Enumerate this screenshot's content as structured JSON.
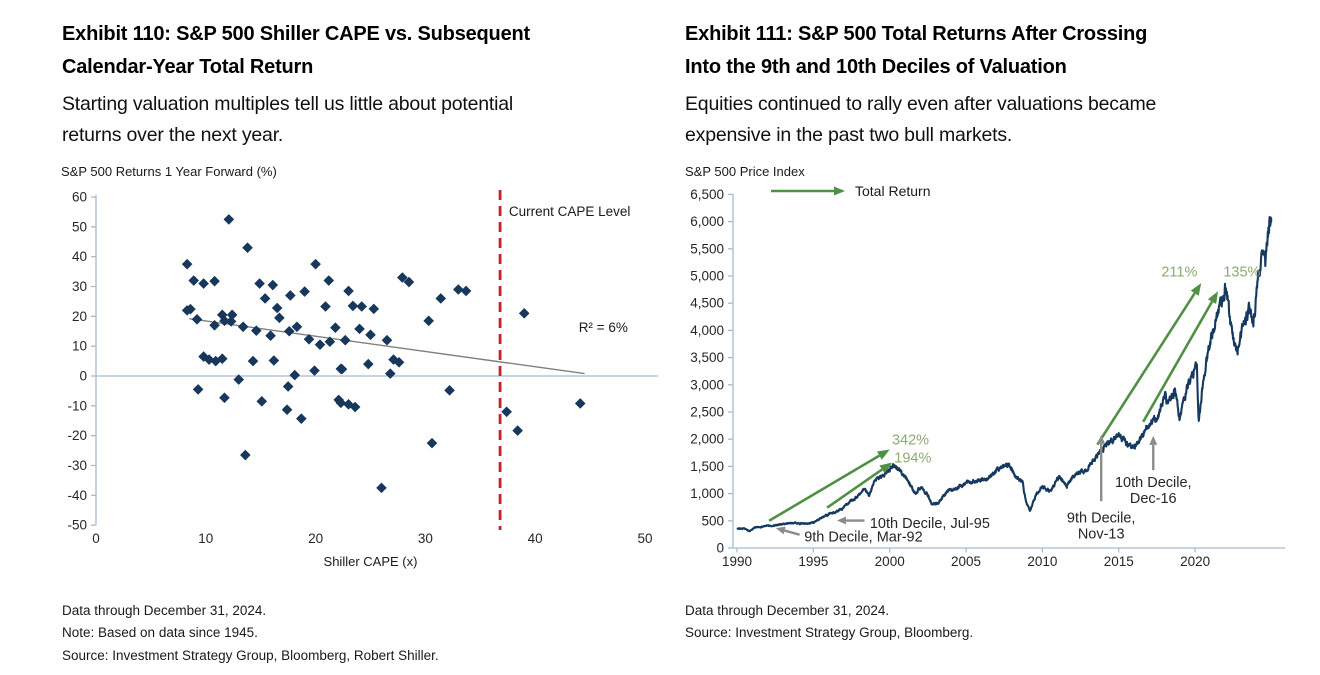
{
  "colors": {
    "navy": "#17375C",
    "line_navy": "#16395F",
    "green_arrow": "#4F9143",
    "green_label": "#8CAA72",
    "red_dashed": "#C8232C",
    "axis_line": "#A7BBCF",
    "trend_gray": "#808080",
    "gray_arrow": "#8C8C8C",
    "text_dark": "#1A1A1A",
    "annotation_text": "#262626"
  },
  "left": {
    "title_lines": [
      "Exhibit 110: S&P 500 Shiller CAPE vs. Subsequent",
      "Calendar-Year Total Return"
    ],
    "subtitle_lines": [
      "Starting valuation multiples tell us little about potential",
      "returns over the next year."
    ],
    "footnotes": [
      "Data through December 31, 2024.",
      "Note: Based on data since 1945.",
      "Source: Investment Strategy Group, Bloomberg, Robert Shiller."
    ]
  },
  "right": {
    "title_lines": [
      "Exhibit 111: S&P 500 Total Returns After Crossing",
      "Into the 9th and 10th Deciles of Valuation"
    ],
    "subtitle_lines": [
      "Equities continued to rally even after valuations became",
      "expensive in the past two bull markets."
    ],
    "footnotes": [
      "Data through December 31, 2024.",
      "Source: Investment Strategy Group, Bloomberg."
    ]
  },
  "chart_data": [
    {
      "type": "scatter",
      "title": "S&P 500 Shiller CAPE vs. Subsequent Calendar-Year Total Return",
      "ylabel": "S&P 500 Returns 1 Year Forward (%)",
      "xlabel": "Shiller CAPE (x)",
      "xlim": [
        0,
        50
      ],
      "ylim": [
        -50,
        60
      ],
      "x_ticks": [
        0,
        10,
        20,
        30,
        40,
        50
      ],
      "y_ticks": [
        60,
        50,
        40,
        30,
        20,
        10,
        0,
        -10,
        -20,
        -30,
        -40,
        -50
      ],
      "grid": false,
      "points": [
        [
          8.3,
          37.5
        ],
        [
          8.3,
          22
        ],
        [
          8.6,
          22.4
        ],
        [
          8.9,
          32
        ],
        [
          9.2,
          19
        ],
        [
          9.3,
          -4.5
        ],
        [
          9.8,
          31
        ],
        [
          9.8,
          6.5
        ],
        [
          10.3,
          5.5
        ],
        [
          10.8,
          31.8
        ],
        [
          10.8,
          17
        ],
        [
          10.9,
          5
        ],
        [
          11.5,
          20.5
        ],
        [
          11.5,
          5.8
        ],
        [
          11.7,
          18.5
        ],
        [
          11.7,
          -7.3
        ],
        [
          12.1,
          52.5
        ],
        [
          12.3,
          18.3
        ],
        [
          12.4,
          20.5
        ],
        [
          13,
          -1.2
        ],
        [
          13.4,
          16.5
        ],
        [
          13.6,
          -26.5
        ],
        [
          13.8,
          43
        ],
        [
          14.3,
          5
        ],
        [
          14.6,
          15.2
        ],
        [
          14.9,
          31
        ],
        [
          15.1,
          -8.5
        ],
        [
          15.4,
          26
        ],
        [
          15.9,
          13.5
        ],
        [
          16.1,
          30.5
        ],
        [
          16.2,
          5.2
        ],
        [
          16.5,
          22.8
        ],
        [
          16.7,
          19.5
        ],
        [
          17.4,
          -11.3
        ],
        [
          17.5,
          -3.5
        ],
        [
          17.6,
          15
        ],
        [
          17.7,
          27
        ],
        [
          18.1,
          0.3
        ],
        [
          18.3,
          16.5
        ],
        [
          18.7,
          -14.3
        ],
        [
          19,
          28.3
        ],
        [
          19.4,
          12.3
        ],
        [
          19.9,
          1.8
        ],
        [
          20,
          37.5
        ],
        [
          20.4,
          10.5
        ],
        [
          20.9,
          23.3
        ],
        [
          21.2,
          32
        ],
        [
          21.3,
          11.5
        ],
        [
          21.8,
          16.2
        ],
        [
          22.1,
          -8
        ],
        [
          22.3,
          2.4
        ],
        [
          22.3,
          -9
        ],
        [
          22.4,
          2.3
        ],
        [
          22.7,
          12
        ],
        [
          23,
          28.5
        ],
        [
          23,
          -9.5
        ],
        [
          23.4,
          23.5
        ],
        [
          23.6,
          -10.4
        ],
        [
          24,
          15.8
        ],
        [
          24.2,
          23.3
        ],
        [
          24.8,
          4
        ],
        [
          25,
          13.8
        ],
        [
          25.3,
          22.5
        ],
        [
          26,
          -37.5
        ],
        [
          26.5,
          12
        ],
        [
          26.8,
          0.8
        ],
        [
          27.1,
          5.5
        ],
        [
          27.6,
          4.6
        ],
        [
          27.9,
          33
        ],
        [
          28.5,
          31.5
        ],
        [
          30.3,
          18.5
        ],
        [
          30.6,
          -22.5
        ],
        [
          31.4,
          26
        ],
        [
          32.2,
          -4.8
        ],
        [
          33,
          29
        ],
        [
          33.7,
          28.5
        ],
        [
          37.4,
          -12
        ],
        [
          38.4,
          -18.3
        ],
        [
          39,
          21
        ],
        [
          44.1,
          -9.2
        ]
      ],
      "trend_line": {
        "x1": 8.5,
        "y1": 19.2,
        "x2": 44.5,
        "y2": 0.8
      },
      "r_squared": {
        "label": "R² = 6%",
        "at": [
          46.2,
          16.5
        ]
      },
      "vline": {
        "x": 36.8,
        "label": "Current CAPE Level",
        "label_at": [
          37.6,
          55
        ]
      }
    },
    {
      "type": "line",
      "title": "S&P 500 Total Returns After Crossing Into the 9th and 10th Deciles of Valuation",
      "ylabel": "S&P 500 Price Index",
      "xlabel": "",
      "xlim": [
        1989.6,
        2026
      ],
      "ylim": [
        0,
        6500
      ],
      "x_ticks": [
        1990,
        1995,
        2000,
        2005,
        2010,
        2015,
        2020
      ],
      "y_ticks": [
        0,
        500,
        1000,
        1500,
        2000,
        2500,
        3000,
        3500,
        4000,
        4500,
        5000,
        5500,
        6000,
        6500
      ],
      "y_tick_labels": [
        "0",
        "500",
        "1,000",
        "1,500",
        "2,000",
        "2,500",
        "3,000",
        "3,500",
        "4,000",
        "4,500",
        "5,000",
        "5,500",
        "6,000",
        "6,500"
      ],
      "grid": false,
      "legend": {
        "label": "Total Return",
        "position": "top-left"
      },
      "series": [
        {
          "name": "S&P 500 Price Index",
          "anchors": [
            [
              1990,
              353
            ],
            [
              1990.5,
              360
            ],
            [
              1990.8,
              306
            ],
            [
              1991.2,
              380
            ],
            [
              1991.6,
              390
            ],
            [
              1992,
              412
            ],
            [
              1992.3,
              404
            ],
            [
              1993,
              442
            ],
            [
              1993.7,
              460
            ],
            [
              1994.1,
              447
            ],
            [
              1994.6,
              455
            ],
            [
              1995,
              465
            ],
            [
              1995.55,
              560
            ],
            [
              1996,
              616
            ],
            [
              1996.5,
              668
            ],
            [
              1997,
              740
            ],
            [
              1997.6,
              900
            ],
            [
              1997.8,
              920
            ],
            [
              1998.3,
              1100
            ],
            [
              1998.65,
              960
            ],
            [
              1999,
              1250
            ],
            [
              1999.6,
              1330
            ],
            [
              2000.2,
              1500
            ],
            [
              2000.7,
              1430
            ],
            [
              2001,
              1320
            ],
            [
              2001.7,
              990
            ],
            [
              2002,
              1130
            ],
            [
              2002.55,
              950
            ],
            [
              2002.78,
              790
            ],
            [
              2003.2,
              840
            ],
            [
              2003.8,
              1050
            ],
            [
              2004.5,
              1110
            ],
            [
              2005,
              1200
            ],
            [
              2005.8,
              1240
            ],
            [
              2006.5,
              1280
            ],
            [
              2007,
              1430
            ],
            [
              2007.78,
              1550
            ],
            [
              2008.2,
              1330
            ],
            [
              2008.7,
              1200
            ],
            [
              2008.9,
              880
            ],
            [
              2009.17,
              680
            ],
            [
              2009.6,
              990
            ],
            [
              2010,
              1130
            ],
            [
              2010.5,
              1040
            ],
            [
              2011.1,
              1320
            ],
            [
              2011.6,
              1130
            ],
            [
              2012,
              1310
            ],
            [
              2012.4,
              1400
            ],
            [
              2012.8,
              1410
            ],
            [
              2013.4,
              1630
            ],
            [
              2013.9,
              1800
            ],
            [
              2014.5,
              1960
            ],
            [
              2015,
              2080
            ],
            [
              2015.6,
              1890
            ],
            [
              2016.1,
              1840
            ],
            [
              2016.6,
              2130
            ],
            [
              2017,
              2270
            ],
            [
              2017.6,
              2440
            ],
            [
              2018.05,
              2840
            ],
            [
              2018.15,
              2620
            ],
            [
              2018.7,
              2900
            ],
            [
              2018.97,
              2380
            ],
            [
              2019.5,
              2980
            ],
            [
              2019.9,
              3230
            ],
            [
              2020.12,
              3380
            ],
            [
              2020.23,
              2250
            ],
            [
              2020.6,
              3230
            ],
            [
              2021,
              3760
            ],
            [
              2021.5,
              4320
            ],
            [
              2021.9,
              4700
            ],
            [
              2022,
              4780
            ],
            [
              2022.45,
              3900
            ],
            [
              2022.75,
              3600
            ],
            [
              2023.1,
              4000
            ],
            [
              2023.55,
              4460
            ],
            [
              2023.82,
              4150
            ],
            [
              2024.1,
              4900
            ],
            [
              2024.35,
              5250
            ],
            [
              2024.53,
              5470
            ],
            [
              2024.6,
              5220
            ],
            [
              2024.75,
              5750
            ],
            [
              2024.88,
              6050
            ],
            [
              2024.93,
              5900
            ],
            [
              2024.99,
              6060
            ]
          ]
        }
      ],
      "green_arrows": [
        {
          "from": [
            1992.1,
            500
          ],
          "to": [
            2000.0,
            1810
          ],
          "label": "342%",
          "label_at": [
            2000.15,
            1990
          ],
          "align": "start"
        },
        {
          "from": [
            1995.9,
            740
          ],
          "to": [
            2000.15,
            1570
          ],
          "label": "194%",
          "label_at": [
            2000.3,
            1660
          ],
          "align": "start"
        },
        {
          "from": [
            2013.6,
            1900
          ],
          "to": [
            2020.4,
            4870
          ],
          "label": "211%",
          "label_at": [
            2020.15,
            5080
          ],
          "align": "end"
        },
        {
          "from": [
            2016.6,
            2320
          ],
          "to": [
            2021.5,
            4720
          ],
          "label": "135%",
          "label_at": [
            2021.85,
            5080
          ],
          "align": "start"
        }
      ],
      "decile_markers": [
        {
          "arrow_from": [
            1994.1,
            245
          ],
          "arrow_to": [
            1992.55,
            365
          ],
          "label_lines": [
            "9th Decile, Mar-92"
          ],
          "label_at": [
            1994.4,
            215
          ],
          "align": "start"
        },
        {
          "arrow_from": [
            1998.35,
            505
          ],
          "arrow_to": [
            1996.55,
            505
          ],
          "label_lines": [
            "10th Decile, Jul-95"
          ],
          "label_at": [
            1998.7,
            460
          ],
          "align": "start"
        },
        {
          "arrow_from": [
            2013.85,
            860
          ],
          "arrow_to": [
            2013.85,
            2080
          ],
          "label_lines": [
            "9th Decile,",
            "Nov-13"
          ],
          "label_at": [
            2013.85,
            560
          ],
          "align": "middle"
        },
        {
          "arrow_from": [
            2017.26,
            1430
          ],
          "arrow_to": [
            2017.26,
            2060
          ],
          "label_lines": [
            "10th Decile,",
            "Dec-16"
          ],
          "label_at": [
            2017.26,
            1210
          ],
          "align": "middle"
        }
      ]
    }
  ]
}
